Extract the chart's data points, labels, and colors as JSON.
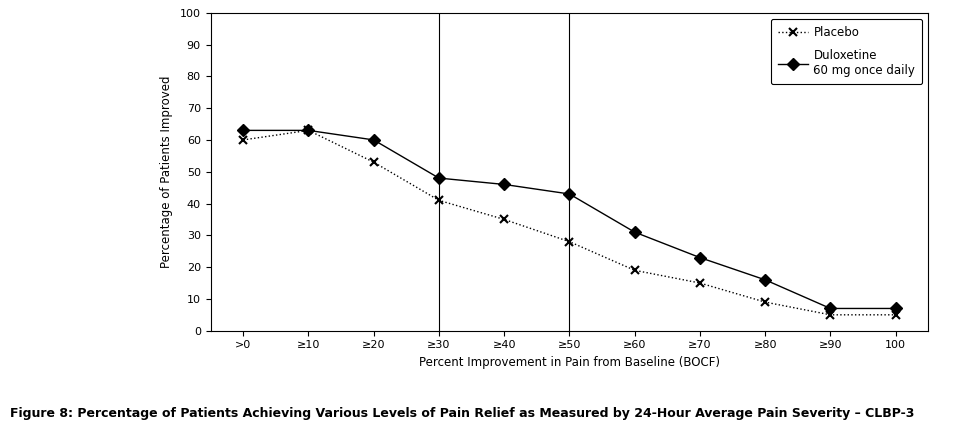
{
  "x_labels": [
    ">0",
    "≥10",
    "≥20",
    "≥30",
    "≥40",
    "≥50",
    "≥60",
    "≥70",
    "≥80",
    "≥90",
    "100"
  ],
  "x_positions": [
    0,
    1,
    2,
    3,
    4,
    5,
    6,
    7,
    8,
    9,
    10
  ],
  "placebo_y": [
    60,
    63,
    53,
    41,
    35,
    28,
    19,
    15,
    9,
    5,
    5
  ],
  "duloxetine_y": [
    63,
    63,
    60,
    48,
    46,
    43,
    31,
    23,
    16,
    7,
    7
  ],
  "ylabel": "Percentage of Patients Improved",
  "xlabel": "Percent Improvement in Pain from Baseline (BOCF)",
  "ylim": [
    0,
    100
  ],
  "yticks": [
    0,
    10,
    20,
    30,
    40,
    50,
    60,
    70,
    80,
    90,
    100
  ],
  "vlines": [
    3,
    5
  ],
  "legend_placebo": "Placebo",
  "legend_duloxetine": "Duloxetine\n60 mg once daily",
  "figure_caption": "Figure 8: Percentage of Patients Achieving Various Levels of Pain Relief as Measured by 24-Hour Average Pain Severity – CLBP-3",
  "line_color": "black",
  "background_color": "white",
  "caption_fontsize": 9,
  "caption_fontweight": "bold"
}
